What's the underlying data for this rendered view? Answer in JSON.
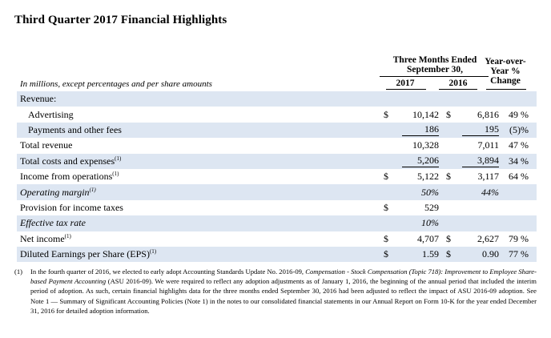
{
  "title": "Third Quarter 2017 Financial Highlights",
  "header": {
    "note": "In millions, except percentages and per share amounts",
    "period": "Three Months Ended September 30,",
    "period_line1": "Three Months Ended",
    "period_line2": "September 30,",
    "year1": "2017",
    "year2": "2016",
    "yoy_line1": "Year-over-",
    "yoy_line2": "Year %",
    "yoy_line3": "Change"
  },
  "rows": [
    {
      "label": "Revenue:",
      "cur17": "",
      "v17": "",
      "cur16": "",
      "v16": "",
      "chg": ""
    },
    {
      "label": "Advertising",
      "cur17": "$",
      "v17": "10,142",
      "cur16": "$",
      "v16": "6,816",
      "chg": "49 %"
    },
    {
      "label": "Payments and other fees",
      "cur17": "",
      "v17": "186",
      "cur16": "",
      "v16": "195",
      "chg": "(5)%"
    },
    {
      "label": "Total revenue",
      "cur17": "",
      "v17": "10,328",
      "cur16": "",
      "v16": "7,011",
      "chg": "47 %"
    },
    {
      "label": "Total costs and expenses",
      "sup": "(1)",
      "cur17": "",
      "v17": "5,206",
      "cur16": "",
      "v16": "3,894",
      "chg": "34 %"
    },
    {
      "label": "Income from operations",
      "sup": "(1)",
      "cur17": "$",
      "v17": "5,122",
      "cur16": "$",
      "v16": "3,117",
      "chg": "64 %"
    },
    {
      "label": "Operating margin",
      "sup": "(1)",
      "pct17": "50%",
      "pct16": "44%"
    },
    {
      "label": "Provision for income taxes",
      "cur17": "$",
      "v17": "529",
      "cur16": "",
      "v16": "",
      "chg": ""
    },
    {
      "label": "Effective tax rate",
      "pct17": "10%",
      "pct16": ""
    },
    {
      "label": "Net income",
      "sup": "(1)",
      "cur17": "$",
      "v17": "4,707",
      "cur16": "$",
      "v16": "2,627",
      "chg": "79 %"
    },
    {
      "label": "Diluted Earnings per Share (EPS)",
      "sup": "(1)",
      "cur17": "$",
      "v17": "1.59",
      "cur16": "$",
      "v16": "0.90",
      "chg": "77 %"
    }
  ],
  "footnote": {
    "number": "(1)",
    "text_part1": "In the fourth quarter of 2016, we elected to early adopt Accounting Standards Update No. 2016-09,",
    "text_italic": "Compensation - Stock Compensation (Topic 718): Improvement to Employee Share-based Payment Accounting",
    "text_part2": "(ASU 2016-09). We were required to reflect any adoption adjustments as of January 1, 2016, the beginning of the annual period that included the interim period of adoption. As such, certain financial highlights data for the three months ended September 30, 2016 had been adjusted to reflect the impact of ASU 2016-09 adoption. See Note 1 — Summary of Significant Accounting Policies (Note 1) in the notes to our consolidated financial statements in our Annual Report on Form 10-K for the year ended December 31, 2016 for detailed adoption information."
  }
}
